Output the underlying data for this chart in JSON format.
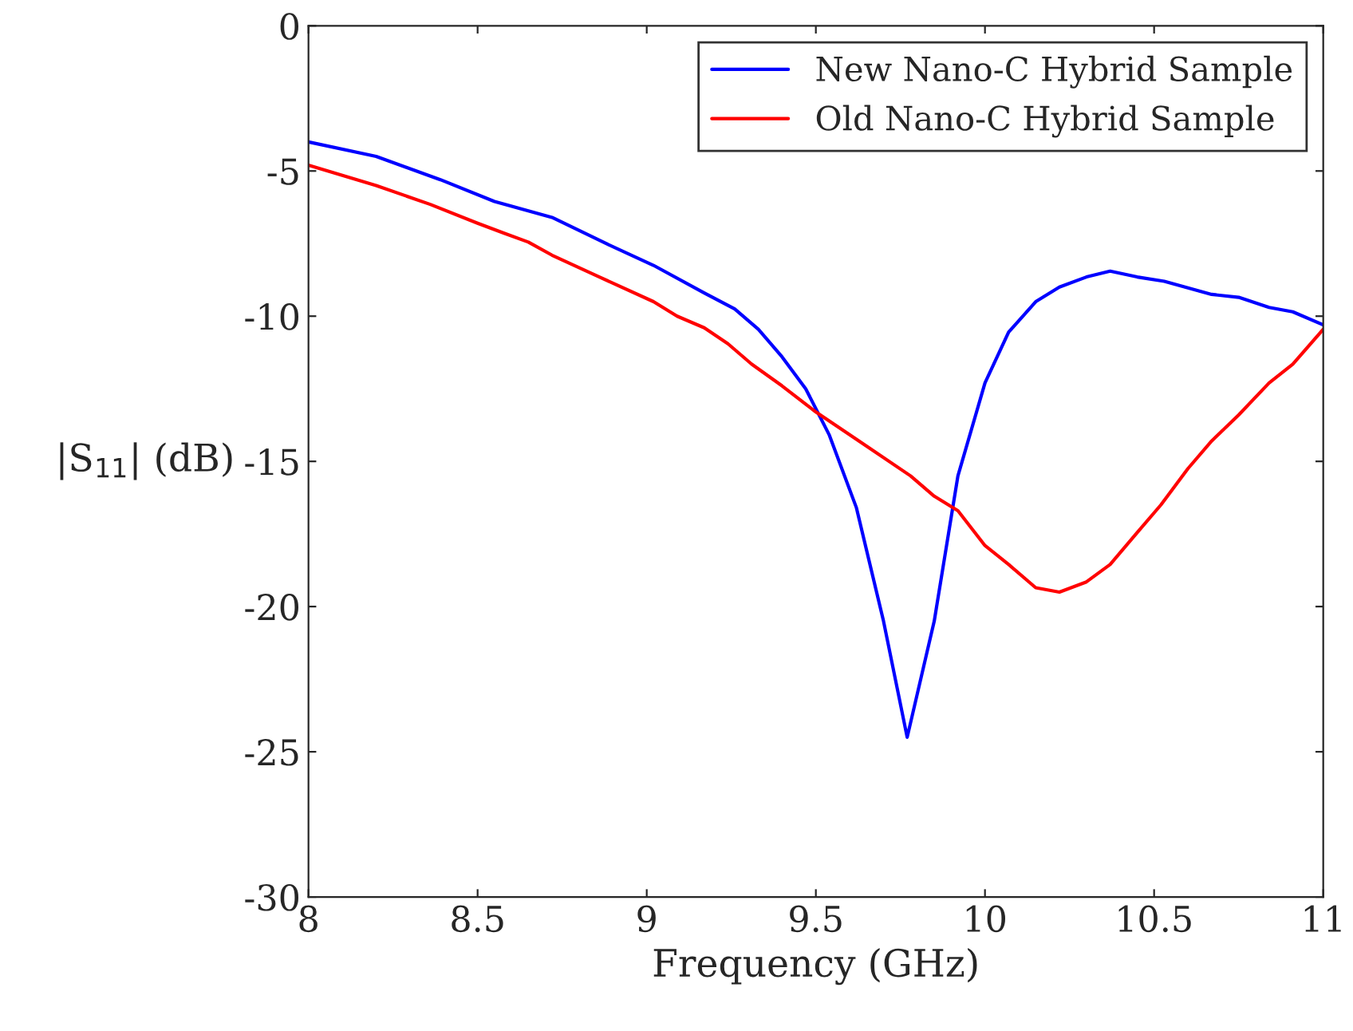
{
  "chart_data": {
    "type": "line",
    "xlabel": "Frequency (GHz)",
    "ylabel": "|S$_{11}$| (dB)",
    "xlim": [
      8,
      11
    ],
    "xticks": [
      8,
      8.5,
      9,
      9.5,
      10,
      10.5,
      11
    ],
    "ylim": [
      -30,
      0
    ],
    "yticks": [
      -30,
      -25,
      -20,
      -15,
      -10,
      -5,
      0
    ],
    "grid": false,
    "legend": "top right",
    "marker": "none",
    "line_style": "solid",
    "series": [
      {
        "name": "New Nano-C Hybrid Sample",
        "color": "#0000ff",
        "x": [
          8,
          8.2,
          8.39,
          8.55,
          8.72,
          8.88,
          9.02,
          9.17,
          9.26,
          9.33,
          9.4,
          9.47,
          9.54,
          9.62,
          9.7,
          9.77,
          9.85,
          9.92,
          10.0,
          10.07,
          10.15,
          10.22,
          10.3,
          10.37,
          10.45,
          10.53,
          10.67,
          10.75,
          10.84,
          10.91,
          11
        ],
        "values": [
          -4.0,
          -4.5,
          -5.3,
          -6.05,
          -6.6,
          -7.5,
          -8.25,
          -9.2,
          -9.75,
          -10.45,
          -11.4,
          -12.5,
          -14.1,
          -16.6,
          -20.5,
          -24.5,
          -20.5,
          -15.5,
          -12.3,
          -10.55,
          -9.5,
          -9.0,
          -8.65,
          -8.45,
          -8.65,
          -8.8,
          -9.25,
          -9.35,
          -9.7,
          -9.85,
          -10.3
        ]
      },
      {
        "name": "Old Nano-C Hybrid Sample",
        "color": "#ff0000",
        "x": [
          8,
          8.2,
          8.36,
          8.5,
          8.58,
          8.65,
          8.72,
          8.86,
          9.02,
          9.09,
          9.17,
          9.24,
          9.31,
          9.4,
          9.5,
          9.64,
          9.78,
          9.85,
          9.92,
          10.0,
          10.07,
          10.15,
          10.22,
          10.3,
          10.37,
          10.45,
          10.52,
          10.6,
          10.67,
          10.75,
          10.84,
          10.91,
          11
        ],
        "values": [
          -4.8,
          -5.5,
          -6.15,
          -6.8,
          -7.15,
          -7.45,
          -7.9,
          -8.65,
          -9.5,
          -10.0,
          -10.4,
          -10.95,
          -11.65,
          -12.4,
          -13.3,
          -14.4,
          -15.5,
          -16.2,
          -16.7,
          -17.9,
          -18.55,
          -19.35,
          -19.5,
          -19.15,
          -18.55,
          -17.45,
          -16.5,
          -15.25,
          -14.3,
          -13.4,
          -12.3,
          -11.65,
          -10.45
        ]
      }
    ]
  }
}
